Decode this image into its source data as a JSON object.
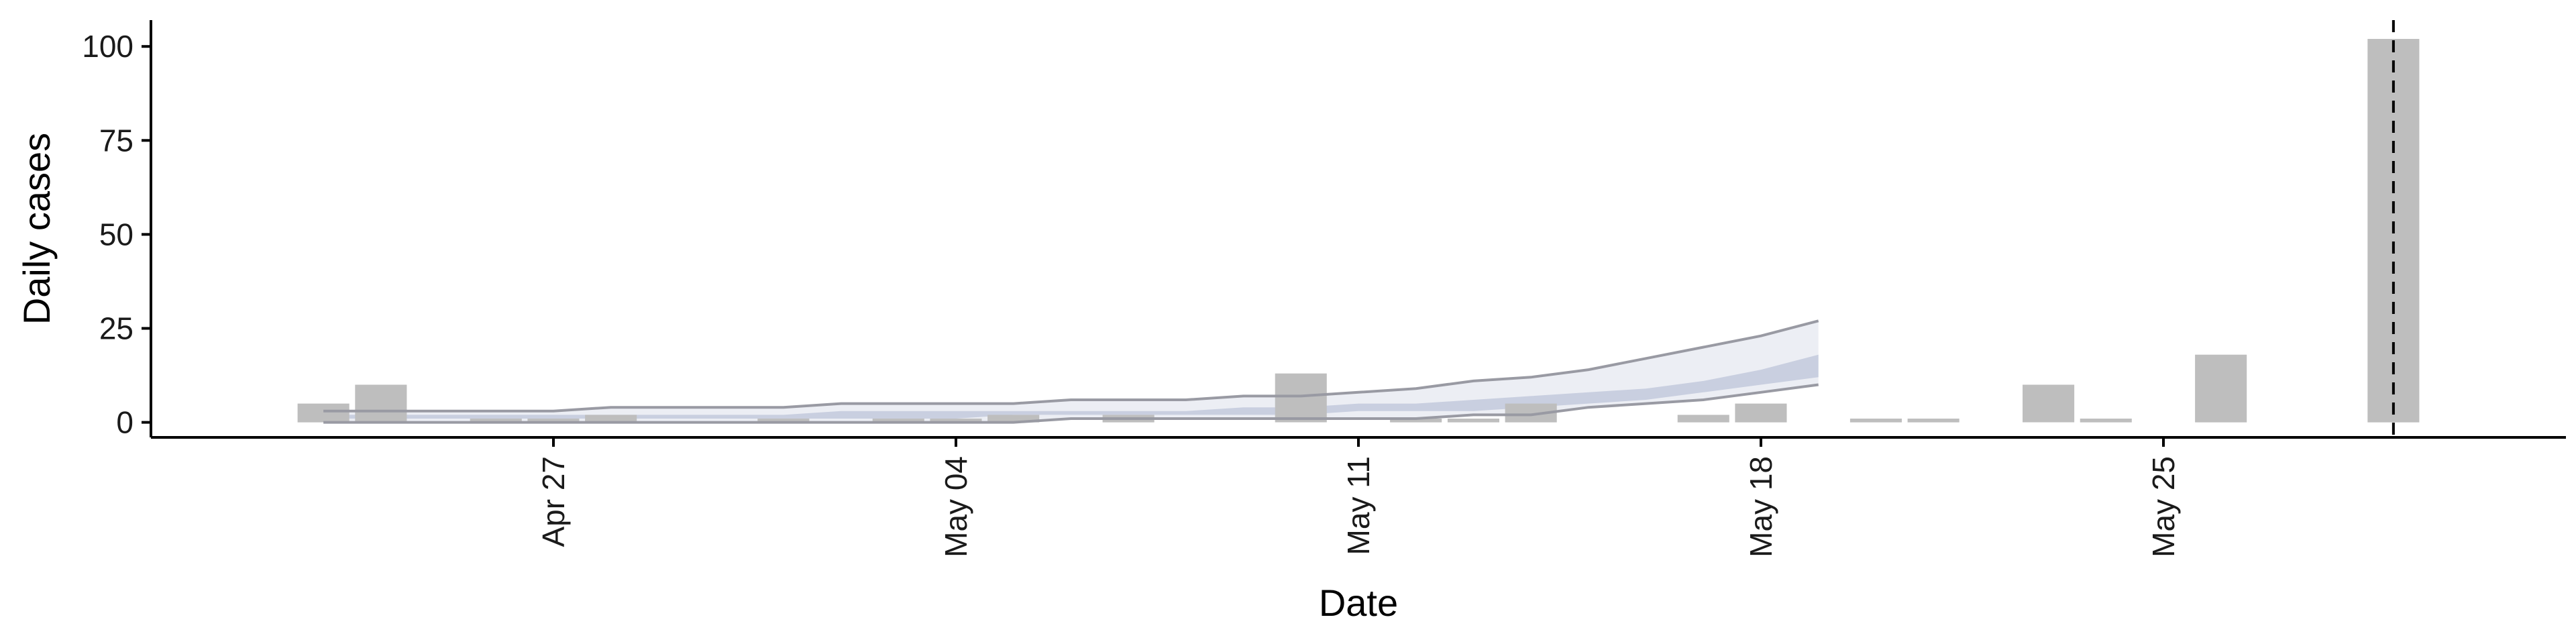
{
  "chart_data": {
    "type": "bar",
    "xlabel": "Date",
    "ylabel": "Daily cases",
    "title": "",
    "ylim": [
      -4,
      107
    ],
    "xlim": [
      "2020-04-20",
      "2020-06-01"
    ],
    "grid": false,
    "legend": "none",
    "x_ticks": [
      {
        "date": "2020-04-27",
        "label": "Apr 27"
      },
      {
        "date": "2020-05-04",
        "label": "May 04"
      },
      {
        "date": "2020-05-11",
        "label": "May 11"
      },
      {
        "date": "2020-05-18",
        "label": "May 18"
      },
      {
        "date": "2020-05-25",
        "label": "May 25"
      }
    ],
    "y_ticks": [
      {
        "value": 0,
        "label": "0"
      },
      {
        "value": 25,
        "label": "25"
      },
      {
        "value": 50,
        "label": "50"
      },
      {
        "value": 75,
        "label": "75"
      },
      {
        "value": 100,
        "label": "100"
      }
    ],
    "bars": [
      {
        "date": "2020-04-23",
        "value": 5
      },
      {
        "date": "2020-04-24",
        "value": 10
      },
      {
        "date": "2020-04-26",
        "value": 1
      },
      {
        "date": "2020-04-27",
        "value": 1
      },
      {
        "date": "2020-04-28",
        "value": 2
      },
      {
        "date": "2020-05-01",
        "value": 1
      },
      {
        "date": "2020-05-03",
        "value": 1
      },
      {
        "date": "2020-05-04",
        "value": 1
      },
      {
        "date": "2020-05-05",
        "value": 2
      },
      {
        "date": "2020-05-07",
        "value": 2
      },
      {
        "date": "2020-05-10",
        "value": 13
      },
      {
        "date": "2020-05-12",
        "value": 1
      },
      {
        "date": "2020-05-13",
        "value": 1
      },
      {
        "date": "2020-05-14",
        "value": 5
      },
      {
        "date": "2020-05-17",
        "value": 2
      },
      {
        "date": "2020-05-18",
        "value": 5
      },
      {
        "date": "2020-05-20",
        "value": 1
      },
      {
        "date": "2020-05-21",
        "value": 1
      },
      {
        "date": "2020-05-23",
        "value": 10
      },
      {
        "date": "2020-05-24",
        "value": 1
      },
      {
        "date": "2020-05-26",
        "value": 18
      },
      {
        "date": "2020-05-29",
        "value": 102
      }
    ],
    "ribbon": {
      "x": [
        "2020-04-23",
        "2020-04-24",
        "2020-04-25",
        "2020-04-26",
        "2020-04-27",
        "2020-04-28",
        "2020-04-29",
        "2020-04-30",
        "2020-05-01",
        "2020-05-02",
        "2020-05-03",
        "2020-05-04",
        "2020-05-05",
        "2020-05-06",
        "2020-05-07",
        "2020-05-08",
        "2020-05-09",
        "2020-05-10",
        "2020-05-11",
        "2020-05-12",
        "2020-05-13",
        "2020-05-14",
        "2020-05-15",
        "2020-05-16",
        "2020-05-17",
        "2020-05-18",
        "2020-05-19"
      ],
      "outer_lower": [
        0,
        0,
        0,
        0,
        0,
        0,
        0,
        0,
        0,
        0,
        0,
        0,
        0,
        1,
        1,
        1,
        1,
        1,
        1,
        1,
        2,
        2,
        4,
        5,
        6,
        8,
        10
      ],
      "outer_upper": [
        3,
        3,
        3,
        3,
        3,
        4,
        4,
        4,
        4,
        5,
        5,
        5,
        5,
        6,
        6,
        6,
        7,
        7,
        8,
        9,
        11,
        12,
        14,
        17,
        20,
        23,
        27
      ],
      "inner_lower": [
        1,
        1,
        1,
        1,
        1,
        1,
        1,
        1,
        1,
        1,
        1,
        1,
        2,
        2,
        2,
        2,
        2,
        2,
        3,
        3,
        3,
        4,
        5,
        6,
        8,
        10,
        12
      ],
      "inner_upper": [
        2,
        2,
        2,
        2,
        2,
        2,
        2,
        2,
        2,
        3,
        3,
        3,
        3,
        3,
        3,
        3,
        4,
        4,
        5,
        5,
        6,
        7,
        8,
        9,
        11,
        14,
        18
      ]
    },
    "vline_date": "2020-05-29",
    "colors": {
      "bar": "#bebebe",
      "outer_ribbon": "#eceef4",
      "inner_ribbon": "#c9cfe0",
      "ribbon_edge": "#999aa3",
      "axis": "#000000",
      "vline": "#000000"
    }
  }
}
